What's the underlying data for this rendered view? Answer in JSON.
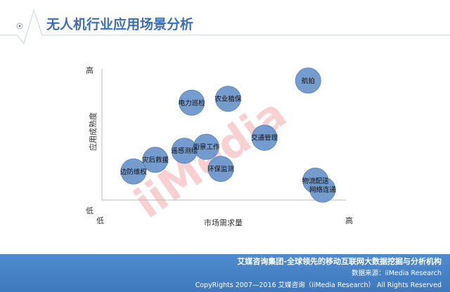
{
  "header": {
    "title": "无人机行业应用场景分析"
  },
  "chart_data": {
    "type": "scatter",
    "title": "无人机行业应用场景分析",
    "xlabel": "市场需求量",
    "ylabel": "应用成熟度",
    "x_ticks": [
      "低",
      "高"
    ],
    "y_ticks": [
      "高",
      "低"
    ],
    "xlim": [
      0,
      10
    ],
    "ylim": [
      0,
      10
    ],
    "grid": false,
    "points": [
      {
        "label": "航拍",
        "x": 8.5,
        "y": 9.2
      },
      {
        "label": "农业植保",
        "x": 5.2,
        "y": 7.8
      },
      {
        "label": "电力巡检",
        "x": 3.7,
        "y": 7.5
      },
      {
        "label": "交通管理",
        "x": 6.7,
        "y": 4.8
      },
      {
        "label": "街景工作",
        "x": 4.3,
        "y": 4.1
      },
      {
        "label": "遥感测绘",
        "x": 3.4,
        "y": 3.8
      },
      {
        "label": "灾后救援",
        "x": 2.2,
        "y": 3.1
      },
      {
        "label": "环保监测",
        "x": 4.9,
        "y": 2.4
      },
      {
        "label": "边防维权",
        "x": 1.3,
        "y": 2.2
      },
      {
        "label": "物流配送",
        "x": 8.8,
        "y": 1.5
      },
      {
        "label": "网络连通",
        "x": 9.1,
        "y": 0.8
      }
    ],
    "bubble_color": "#6d97cc"
  },
  "watermark": {
    "text": "iiMedia 艾媒咨询 Research"
  },
  "footer": {
    "line1": "艾媒咨询集团-全球领先的移动互联网大数据挖掘与分析机构",
    "line2": "数据来源：iiMedia Research",
    "line3": "CopyRights 2007—2016 艾媒咨询（iiMedia Research） All Rights Reserved"
  }
}
